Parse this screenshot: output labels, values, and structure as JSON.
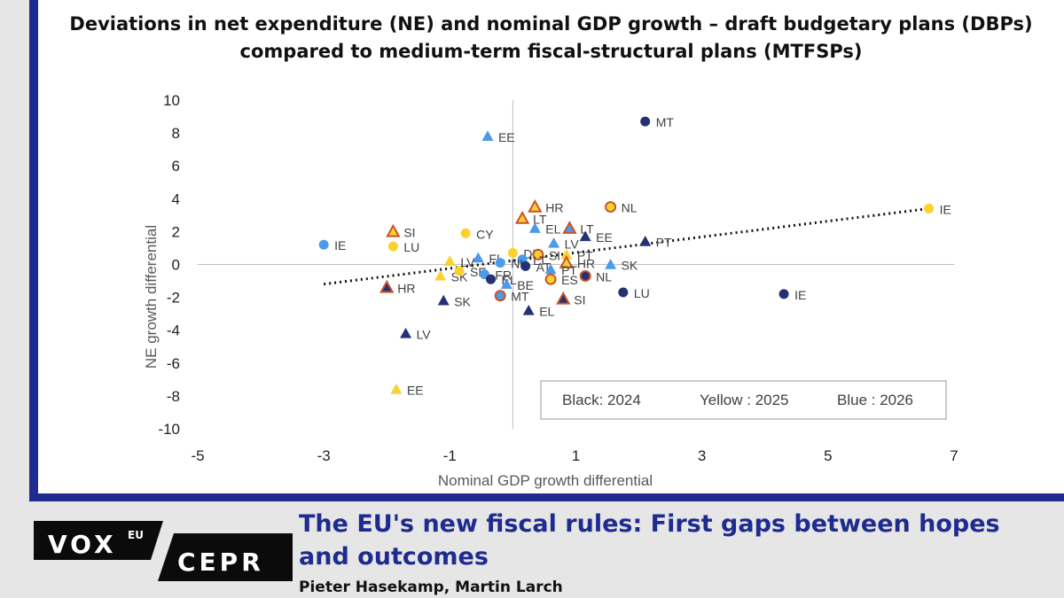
{
  "chart_data": {
    "type": "scatter",
    "title": "Deviations in net expenditure (NE) and nominal GDP growth – draft budgetary plans (DBPs) compared to medium-term fiscal-structural plans (MTFSPs)",
    "xlabel": "Nominal GDP growth differential",
    "ylabel": "NE growth differential",
    "xlim": [
      -5,
      7
    ],
    "ylim": [
      -10,
      10
    ],
    "x_ticks": [
      "-5",
      "-3",
      "-1",
      "1",
      "3",
      "5",
      "7"
    ],
    "y_ticks": [
      "10",
      "8",
      "6",
      "4",
      "2",
      "0",
      "-2",
      "-4",
      "-6",
      "-8",
      "-10"
    ],
    "legend_text": [
      "Black: 2024",
      "Yellow : 2025",
      "Blue : 2026"
    ],
    "legend_position": "bottom-right",
    "trendline": {
      "style": "dotted",
      "x": [
        -3,
        6.6
      ],
      "y": [
        -1.2,
        3.4
      ]
    },
    "colors": {
      "2024": "#263173",
      "2025": "#fad12f",
      "2026": "#4c9be8",
      "outline_dbp": "#c8532b"
    },
    "points": [
      {
        "x": 2.1,
        "y": 8.7,
        "marker": "circle",
        "year": "2024",
        "label": "MT"
      },
      {
        "x": -0.4,
        "y": 7.8,
        "marker": "triangle",
        "year": "2026",
        "label": "EE"
      },
      {
        "x": 0.35,
        "y": 3.5,
        "marker": "triangle",
        "year": "2025",
        "outline": true,
        "label": "HR"
      },
      {
        "x": 1.55,
        "y": 3.5,
        "marker": "circle",
        "year": "2025",
        "outline": true,
        "label": "NL"
      },
      {
        "x": 6.6,
        "y": 3.4,
        "marker": "circle",
        "year": "2025",
        "label": "IE"
      },
      {
        "x": 0.15,
        "y": 2.8,
        "marker": "triangle",
        "year": "2025",
        "outline": true,
        "label": "LT"
      },
      {
        "x": 0.35,
        "y": 2.2,
        "marker": "triangle",
        "year": "2026",
        "label": "EL"
      },
      {
        "x": 0.9,
        "y": 2.2,
        "marker": "triangle",
        "year": "2026",
        "outline": true,
        "label": "LT"
      },
      {
        "x": -1.9,
        "y": 2.0,
        "marker": "triangle",
        "year": "2025",
        "outline": true,
        "label": "SI"
      },
      {
        "x": -0.75,
        "y": 1.9,
        "marker": "circle",
        "year": "2025",
        "label": "CY"
      },
      {
        "x": 1.15,
        "y": 1.7,
        "marker": "triangle",
        "year": "2024",
        "label": "EE"
      },
      {
        "x": 0.65,
        "y": 1.3,
        "marker": "triangle",
        "year": "2026",
        "label": "LV"
      },
      {
        "x": 2.1,
        "y": 1.4,
        "marker": "triangle",
        "year": "2024",
        "label": "PT"
      },
      {
        "x": -3.0,
        "y": 1.2,
        "marker": "circle",
        "year": "2026",
        "label": "IE"
      },
      {
        "x": -1.9,
        "y": 1.1,
        "marker": "circle",
        "year": "2025",
        "label": "LU"
      },
      {
        "x": -1.0,
        "y": 0.2,
        "marker": "triangle",
        "year": "2025",
        "label": "LV"
      },
      {
        "x": 0.85,
        "y": 0.6,
        "marker": "triangle",
        "year": "2025",
        "label": "PT"
      },
      {
        "x": 0.0,
        "y": 0.7,
        "marker": "circle",
        "year": "2025",
        "label": "DE"
      },
      {
        "x": 0.4,
        "y": 0.6,
        "marker": "circle",
        "year": "2025",
        "outline": true,
        "label": "SI"
      },
      {
        "x": 0.15,
        "y": 0.3,
        "marker": "circle",
        "year": "2026",
        "label": "LT"
      },
      {
        "x": -0.55,
        "y": 0.4,
        "marker": "triangle",
        "year": "2026",
        "label": "FI"
      },
      {
        "x": -0.2,
        "y": 0.1,
        "marker": "circle",
        "year": "2026",
        "label": "NL"
      },
      {
        "x": 0.2,
        "y": -0.1,
        "marker": "circle",
        "year": "2024",
        "label": "AT"
      },
      {
        "x": 0.85,
        "y": 0.1,
        "marker": "triangle",
        "year": "2025",
        "outline": true,
        "label": "HR"
      },
      {
        "x": 1.55,
        "y": 0.0,
        "marker": "triangle",
        "year": "2026",
        "label": "SK"
      },
      {
        "x": 0.6,
        "y": -0.3,
        "marker": "triangle",
        "year": "2026",
        "label": "PT"
      },
      {
        "x": -1.15,
        "y": -0.7,
        "marker": "triangle",
        "year": "2025",
        "label": "SK"
      },
      {
        "x": -0.85,
        "y": -0.4,
        "marker": "circle",
        "year": "2025",
        "label": "SE"
      },
      {
        "x": -0.45,
        "y": -0.6,
        "marker": "circle",
        "year": "2026",
        "label": "FR"
      },
      {
        "x": -0.35,
        "y": -0.9,
        "marker": "circle",
        "year": "2024",
        "label": "EL"
      },
      {
        "x": -0.1,
        "y": -1.2,
        "marker": "triangle",
        "year": "2026",
        "label": "BE"
      },
      {
        "x": 0.6,
        "y": -0.9,
        "marker": "circle",
        "year": "2025",
        "outline": true,
        "label": "ES"
      },
      {
        "x": 1.15,
        "y": -0.7,
        "marker": "circle",
        "year": "2024",
        "outline": true,
        "label": "NL"
      },
      {
        "x": -2.0,
        "y": -1.4,
        "marker": "triangle",
        "year": "2024",
        "outline": true,
        "label": "HR"
      },
      {
        "x": -1.1,
        "y": -2.2,
        "marker": "triangle",
        "year": "2024",
        "label": "SK"
      },
      {
        "x": -0.2,
        "y": -1.9,
        "marker": "circle",
        "year": "2026",
        "outline": true,
        "label": "MT"
      },
      {
        "x": 0.8,
        "y": -2.1,
        "marker": "triangle",
        "year": "2024",
        "outline": true,
        "label": "SI"
      },
      {
        "x": 1.75,
        "y": -1.7,
        "marker": "circle",
        "year": "2024",
        "label": "LU"
      },
      {
        "x": 4.3,
        "y": -1.8,
        "marker": "circle",
        "year": "2024",
        "label": "IE"
      },
      {
        "x": 0.25,
        "y": -2.8,
        "marker": "triangle",
        "year": "2024",
        "label": "EL"
      },
      {
        "x": -1.7,
        "y": -4.2,
        "marker": "triangle",
        "year": "2024",
        "label": "LV"
      },
      {
        "x": -1.85,
        "y": -7.6,
        "marker": "triangle",
        "year": "2025",
        "label": "EE"
      }
    ]
  },
  "footer": {
    "logo_vox": "VOX",
    "logo_eu": "EU",
    "logo_cepr": "CEPR",
    "article_title": "The EU's new fiscal rules: First gaps between hopes and outcomes",
    "authors": "Pieter Hasekamp, Martin Larch"
  }
}
